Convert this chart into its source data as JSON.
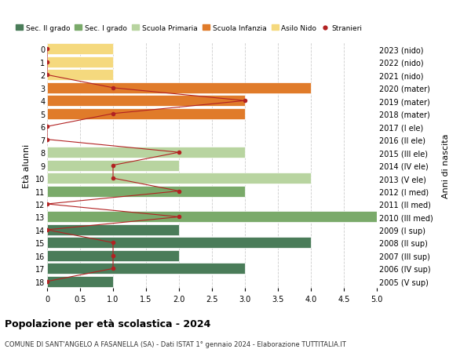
{
  "ages": [
    18,
    17,
    16,
    15,
    14,
    13,
    12,
    11,
    10,
    9,
    8,
    7,
    6,
    5,
    4,
    3,
    2,
    1,
    0
  ],
  "years": [
    "2005 (V sup)",
    "2006 (IV sup)",
    "2007 (III sup)",
    "2008 (II sup)",
    "2009 (I sup)",
    "2010 (III med)",
    "2011 (II med)",
    "2012 (I med)",
    "2013 (V ele)",
    "2014 (IV ele)",
    "2015 (III ele)",
    "2016 (II ele)",
    "2017 (I ele)",
    "2018 (mater)",
    "2019 (mater)",
    "2020 (mater)",
    "2021 (nido)",
    "2022 (nido)",
    "2023 (nido)"
  ],
  "bar_values": [
    1,
    3,
    2,
    4,
    2,
    5,
    0,
    3,
    4,
    2,
    3,
    0,
    0,
    3,
    3,
    4,
    1,
    1,
    1
  ],
  "bar_colors": [
    "#4a7c59",
    "#4a7c59",
    "#4a7c59",
    "#4a7c59",
    "#4a7c59",
    "#7aaa6a",
    "#7aaa6a",
    "#7aaa6a",
    "#b8d4a0",
    "#b8d4a0",
    "#b8d4a0",
    "#b8d4a0",
    "#b8d4a0",
    "#e07b2a",
    "#e07b2a",
    "#e07b2a",
    "#f5d97e",
    "#f5d97e",
    "#f5d97e"
  ],
  "stranieri_x": [
    0,
    1,
    1,
    1,
    0,
    2,
    0,
    2,
    1,
    1,
    2,
    0,
    0,
    1,
    3,
    1,
    0,
    0,
    0
  ],
  "legend_labels": [
    "Sec. II grado",
    "Sec. I grado",
    "Scuola Primaria",
    "Scuola Infanzia",
    "Asilo Nido",
    "Stranieri"
  ],
  "legend_colors": [
    "#4a7c59",
    "#7aaa6a",
    "#b8d4a0",
    "#e07b2a",
    "#f5d97e",
    "#b22222"
  ],
  "ylabel_left": "Età alunni",
  "ylabel_right": "Anni di nascita",
  "title": "Popolazione per età scolastica - 2024",
  "subtitle": "COMUNE DI SANT'ANGELO A FASANELLA (SA) - Dati ISTAT 1° gennaio 2024 - Elaborazione TUTTITALIA.IT",
  "xlim": [
    0,
    5.0
  ],
  "background_color": "#ffffff",
  "grid_color": "#cccccc",
  "stranieri_color": "#b22222",
  "bar_height": 0.85
}
